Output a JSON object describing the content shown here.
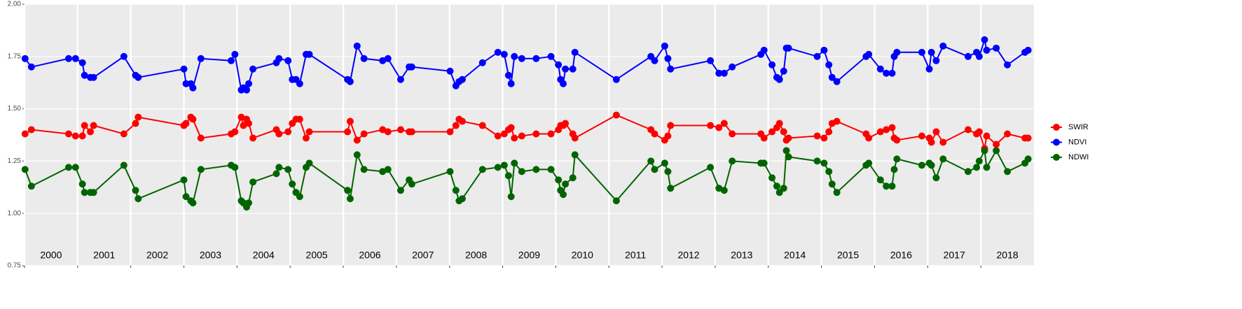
{
  "chart_data": {
    "type": "line",
    "x": [
      2000.01,
      2000.13,
      2000.83,
      2000.96,
      2001.09,
      2001.13,
      2001.24,
      2001.3,
      2001.87,
      2002.09,
      2002.14,
      2003.0,
      2003.04,
      2003.13,
      2003.17,
      2003.32,
      2003.89,
      2003.96,
      2004.08,
      2004.12,
      2004.18,
      2004.22,
      2004.3,
      2004.74,
      2004.79,
      2004.96,
      2005.04,
      2005.11,
      2005.18,
      2005.3,
      2005.36,
      2006.08,
      2006.13,
      2006.26,
      2006.39,
      2006.74,
      2006.84,
      2007.08,
      2007.24,
      2007.29,
      2008.01,
      2008.12,
      2008.18,
      2008.24,
      2008.62,
      2008.91,
      2009.03,
      2009.11,
      2009.16,
      2009.22,
      2009.36,
      2009.63,
      2009.91,
      2010.05,
      2010.09,
      2010.14,
      2010.18,
      2010.32,
      2010.36,
      2011.14,
      2011.79,
      2011.86,
      2012.05,
      2012.11,
      2012.16,
      2012.91,
      2013.07,
      2013.17,
      2013.32,
      2013.86,
      2013.92,
      2014.07,
      2014.16,
      2014.21,
      2014.29,
      2014.34,
      2014.38,
      2014.92,
      2015.05,
      2015.14,
      2015.2,
      2015.29,
      2015.84,
      2015.89,
      2016.11,
      2016.22,
      2016.33,
      2016.37,
      2016.42,
      2016.89,
      2017.03,
      2017.07,
      2017.16,
      2017.29,
      2017.76,
      2017.92,
      2017.97,
      2018.07,
      2018.11,
      2018.29,
      2018.5,
      2018.83,
      2018.89
    ],
    "series": [
      {
        "name": "SWIR",
        "color": "#ff0000",
        "values": [
          1.38,
          1.4,
          1.38,
          1.37,
          1.37,
          1.42,
          1.39,
          1.42,
          1.38,
          1.43,
          1.46,
          1.42,
          1.43,
          1.46,
          1.45,
          1.36,
          1.38,
          1.39,
          1.46,
          1.42,
          1.45,
          1.43,
          1.36,
          1.4,
          1.38,
          1.39,
          1.43,
          1.45,
          1.45,
          1.36,
          1.39,
          1.39,
          1.44,
          1.35,
          1.38,
          1.4,
          1.39,
          1.4,
          1.39,
          1.39,
          1.39,
          1.42,
          1.45,
          1.44,
          1.42,
          1.37,
          1.38,
          1.4,
          1.41,
          1.36,
          1.37,
          1.38,
          1.38,
          1.4,
          1.42,
          1.42,
          1.43,
          1.38,
          1.36,
          1.47,
          1.4,
          1.38,
          1.35,
          1.37,
          1.42,
          1.42,
          1.41,
          1.43,
          1.38,
          1.38,
          1.36,
          1.39,
          1.41,
          1.43,
          1.39,
          1.35,
          1.36,
          1.37,
          1.36,
          1.39,
          1.43,
          1.44,
          1.38,
          1.36,
          1.39,
          1.4,
          1.41,
          1.36,
          1.35,
          1.37,
          1.36,
          1.34,
          1.39,
          1.34,
          1.4,
          1.38,
          1.39,
          1.31,
          1.37,
          1.33,
          1.38,
          1.36,
          1.36
        ]
      },
      {
        "name": "NDVI",
        "color": "#0000ff",
        "values": [
          1.74,
          1.7,
          1.74,
          1.74,
          1.72,
          1.66,
          1.65,
          1.65,
          1.75,
          1.66,
          1.65,
          1.69,
          1.62,
          1.62,
          1.6,
          1.74,
          1.73,
          1.76,
          1.59,
          1.6,
          1.59,
          1.62,
          1.69,
          1.72,
          1.74,
          1.73,
          1.64,
          1.64,
          1.62,
          1.76,
          1.76,
          1.64,
          1.63,
          1.8,
          1.74,
          1.73,
          1.74,
          1.64,
          1.7,
          1.7,
          1.68,
          1.61,
          1.63,
          1.64,
          1.72,
          1.77,
          1.76,
          1.66,
          1.62,
          1.75,
          1.74,
          1.74,
          1.75,
          1.71,
          1.64,
          1.62,
          1.69,
          1.69,
          1.77,
          1.64,
          1.75,
          1.73,
          1.8,
          1.74,
          1.69,
          1.73,
          1.67,
          1.67,
          1.7,
          1.76,
          1.78,
          1.71,
          1.65,
          1.64,
          1.68,
          1.79,
          1.79,
          1.75,
          1.78,
          1.71,
          1.65,
          1.63,
          1.75,
          1.76,
          1.69,
          1.67,
          1.67,
          1.75,
          1.77,
          1.77,
          1.69,
          1.77,
          1.73,
          1.8,
          1.75,
          1.77,
          1.75,
          1.83,
          1.78,
          1.79,
          1.71,
          1.77,
          1.78
        ]
      },
      {
        "name": "NDWI",
        "color": "#006400",
        "values": [
          1.21,
          1.13,
          1.22,
          1.22,
          1.14,
          1.1,
          1.1,
          1.1,
          1.23,
          1.11,
          1.07,
          1.16,
          1.08,
          1.06,
          1.05,
          1.21,
          1.23,
          1.22,
          1.06,
          1.05,
          1.03,
          1.05,
          1.15,
          1.19,
          1.22,
          1.21,
          1.14,
          1.1,
          1.08,
          1.22,
          1.24,
          1.11,
          1.07,
          1.28,
          1.21,
          1.2,
          1.21,
          1.11,
          1.16,
          1.14,
          1.2,
          1.11,
          1.06,
          1.07,
          1.21,
          1.22,
          1.23,
          1.18,
          1.08,
          1.24,
          1.2,
          1.21,
          1.21,
          1.16,
          1.11,
          1.09,
          1.14,
          1.17,
          1.28,
          1.06,
          1.25,
          1.21,
          1.24,
          1.2,
          1.12,
          1.22,
          1.12,
          1.11,
          1.25,
          1.24,
          1.24,
          1.17,
          1.13,
          1.1,
          1.12,
          1.3,
          1.27,
          1.25,
          1.24,
          1.2,
          1.14,
          1.1,
          1.23,
          1.24,
          1.16,
          1.13,
          1.13,
          1.21,
          1.26,
          1.23,
          1.24,
          1.23,
          1.17,
          1.26,
          1.2,
          1.22,
          1.25,
          1.3,
          1.22,
          1.3,
          1.2,
          1.24,
          1.26
        ]
      }
    ],
    "xlim": [
      2000,
      2019
    ],
    "xticks": [
      2000,
      2001,
      2002,
      2003,
      2004,
      2005,
      2006,
      2007,
      2008,
      2009,
      2010,
      2011,
      2012,
      2013,
      2014,
      2015,
      2016,
      2017,
      2018
    ],
    "ylim": [
      0.75,
      2.0
    ],
    "yticks": [
      0.75,
      {
        "value": 1,
        "label": "1.00"
      },
      1.25,
      {
        "value": 1.5,
        "label": "1.50"
      },
      1.75,
      {
        "value": 2,
        "label": "2.00"
      }
    ],
    "grid": true,
    "legend": "right"
  }
}
